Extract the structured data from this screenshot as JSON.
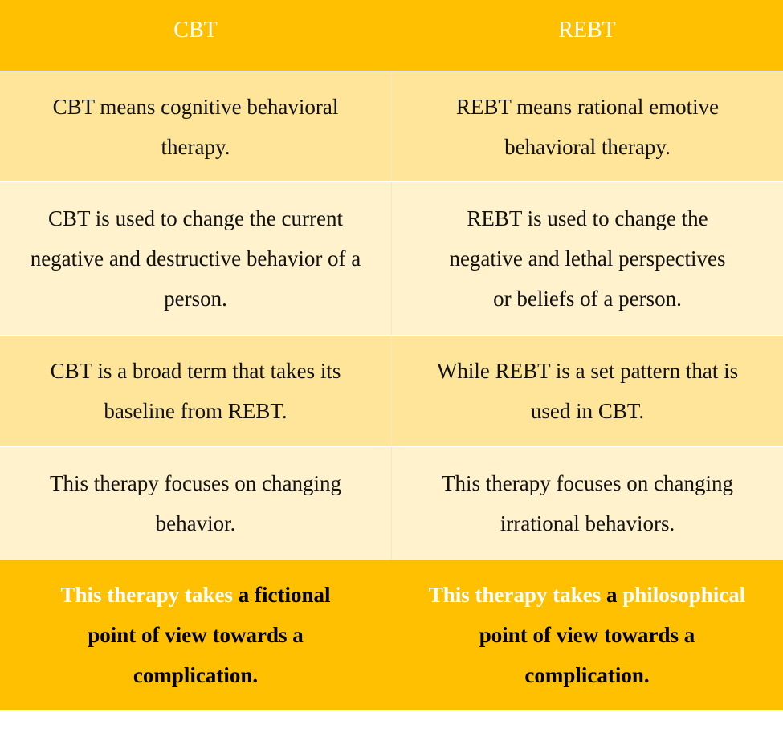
{
  "headers": [
    "CBT",
    "REBT"
  ],
  "rows": [
    [
      "CBT means cognitive behavioral therapy.",
      "REBT means rational emotive behavioral therapy."
    ],
    [
      "CBT is used to change the current negative and destructive behavior of a person.",
      "REBT is used to change the negative and lethal perspectives or beliefs of a person."
    ],
    [
      "CBT is a broad term that takes its baseline from REBT.",
      "While REBT is a set pattern that is used in CBT."
    ],
    [
      "This therapy focuses on changing behavior.",
      "This therapy focuses on changing irrational behaviors."
    ]
  ],
  "footer": {
    "cbt": {
      "part1": "This therapy takes",
      "part2": " a ",
      "part3": "fictional",
      "part4": " point of view towards a complication."
    },
    "rebt": {
      "part1": "This therapy takes",
      "part2": " a ",
      "part3": "philosophical",
      "part4": " point of view towards a complication."
    }
  },
  "colors": {
    "header_bg": "#fec000",
    "row_dark": "#fee59a",
    "row_light": "#fff2cc",
    "highlight_text": "#ffffff"
  }
}
